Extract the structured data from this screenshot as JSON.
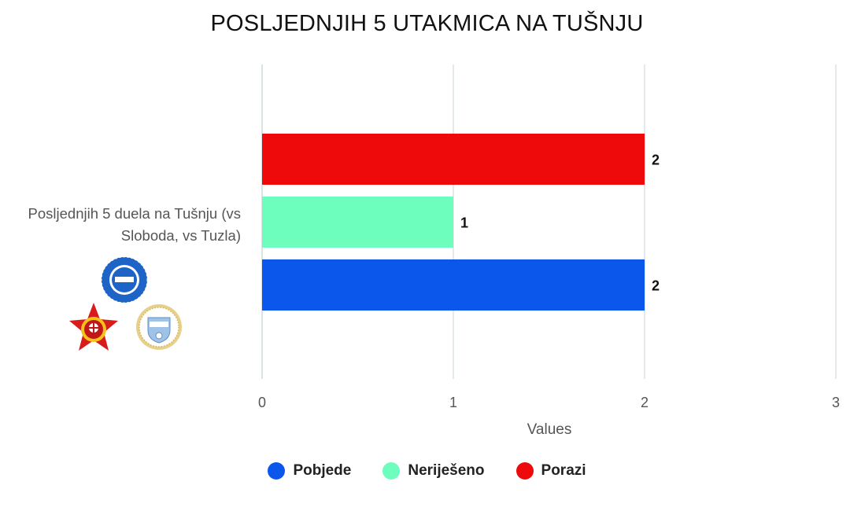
{
  "chart_data": {
    "type": "bar",
    "orientation": "horizontal",
    "title": "POSLJEDNJIH 5 UTAKMICA NA TUŠNJU",
    "categories": [
      "Posljednjih 5 duela na Tušnju (vs Sloboda, vs Tuzla)"
    ],
    "series": [
      {
        "name": "Porazi",
        "values": [
          2
        ],
        "color": "#ee0a0a"
      },
      {
        "name": "Neriješeno",
        "values": [
          1
        ],
        "color": "#6dfdbd"
      },
      {
        "name": "Pobjede",
        "values": [
          2
        ],
        "color": "#0b57eb"
      }
    ],
    "xlabel": "Values",
    "ylabel": "",
    "xlim": [
      0,
      3
    ],
    "x_ticks": [
      "0",
      "1",
      "2",
      "3"
    ],
    "grid": true,
    "data_labels": true,
    "legend_position": "bottom",
    "legend": [
      {
        "label": "Pobjede",
        "color": "#0b57eb"
      },
      {
        "label": "Neriješeno",
        "color": "#6dfdbd"
      },
      {
        "label": "Porazi",
        "color": "#ee0a0a"
      }
    ]
  },
  "logos": {
    "top": "fk-buducnost-banovici-logo",
    "bottom_left": "fk-sloboda-tuzla-logo",
    "bottom_right": "fk-tuzla-city-logo"
  }
}
